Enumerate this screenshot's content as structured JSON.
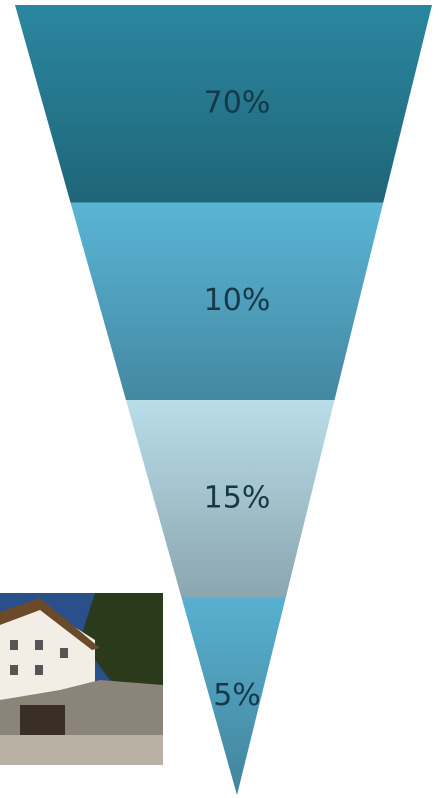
{
  "chart_data": {
    "type": "funnel",
    "values": [
      70,
      10,
      15,
      5
    ],
    "value_labels": [
      "70%",
      "10%",
      "15%",
      "5%"
    ],
    "colors": [
      "#2a87a0",
      "#5ab5d6",
      "#b9dde9",
      "#58b0d0"
    ]
  }
}
